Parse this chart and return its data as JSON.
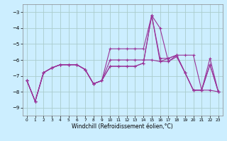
{
  "title": "",
  "xlabel": "Windchill (Refroidissement éolien,°C)",
  "ylabel": "",
  "background_color": "#cceeff",
  "grid_color": "#aacccc",
  "line_color": "#993399",
  "xlim": [
    -0.5,
    23.5
  ],
  "ylim": [
    -9.5,
    -2.5
  ],
  "yticks": [
    -9,
    -8,
    -7,
    -6,
    -5,
    -4,
    -3
  ],
  "xticks": [
    0,
    1,
    2,
    3,
    4,
    5,
    6,
    7,
    8,
    9,
    10,
    11,
    12,
    13,
    14,
    15,
    16,
    17,
    18,
    19,
    20,
    21,
    22,
    23
  ],
  "series": [
    {
      "x": [
        0,
        1,
        2,
        3,
        4,
        5,
        6,
        7,
        8,
        9,
        10,
        11,
        12,
        13,
        14,
        15,
        16,
        17,
        18,
        19,
        20,
        21,
        22,
        23
      ],
      "y": [
        -7.3,
        -8.6,
        -6.8,
        -6.5,
        -6.3,
        -6.3,
        -6.3,
        -6.6,
        -7.5,
        -7.3,
        -5.3,
        -5.3,
        -5.3,
        -5.3,
        -5.3,
        -3.2,
        -4.0,
        -6.1,
        -5.7,
        -5.7,
        -5.7,
        -7.9,
        -5.9,
        -8.0
      ]
    },
    {
      "x": [
        0,
        1,
        2,
        3,
        4,
        5,
        6,
        7,
        8,
        9,
        10,
        11,
        12,
        13,
        14,
        15,
        16,
        17,
        18,
        19,
        20,
        21,
        22,
        23
      ],
      "y": [
        -7.3,
        -8.6,
        -6.8,
        -6.5,
        -6.3,
        -6.3,
        -6.3,
        -6.6,
        -7.5,
        -7.3,
        -6.0,
        -6.0,
        -6.0,
        -6.0,
        -6.0,
        -6.0,
        -6.1,
        -6.1,
        -5.8,
        -6.8,
        -7.9,
        -7.9,
        -7.9,
        -8.0
      ]
    },
    {
      "x": [
        0,
        1,
        2,
        3,
        4,
        5,
        6,
        7,
        8,
        9,
        10,
        11,
        12,
        13,
        14,
        15,
        16,
        17,
        18,
        19,
        20,
        21,
        22,
        23
      ],
      "y": [
        -7.3,
        -8.6,
        -6.8,
        -6.5,
        -6.3,
        -6.3,
        -6.3,
        -6.6,
        -7.5,
        -7.3,
        -6.4,
        -6.4,
        -6.4,
        -6.4,
        -6.2,
        -3.2,
        -6.1,
        -5.9,
        -5.7,
        -6.8,
        -7.9,
        -7.9,
        -6.3,
        -8.0
      ]
    },
    {
      "x": [
        0,
        1,
        2,
        3,
        4,
        5,
        6,
        7,
        8,
        9,
        10,
        11,
        12,
        13,
        14,
        15,
        16,
        17,
        18,
        19,
        20,
        21,
        22,
        23
      ],
      "y": [
        -7.3,
        -8.6,
        -6.8,
        -6.5,
        -6.3,
        -6.3,
        -6.3,
        -6.6,
        -7.5,
        -7.3,
        -6.4,
        -6.4,
        -6.4,
        -6.4,
        -6.2,
        -3.2,
        -5.9,
        -5.9,
        -5.7,
        -6.8,
        -7.9,
        -7.9,
        -6.3,
        -8.0
      ]
    }
  ]
}
